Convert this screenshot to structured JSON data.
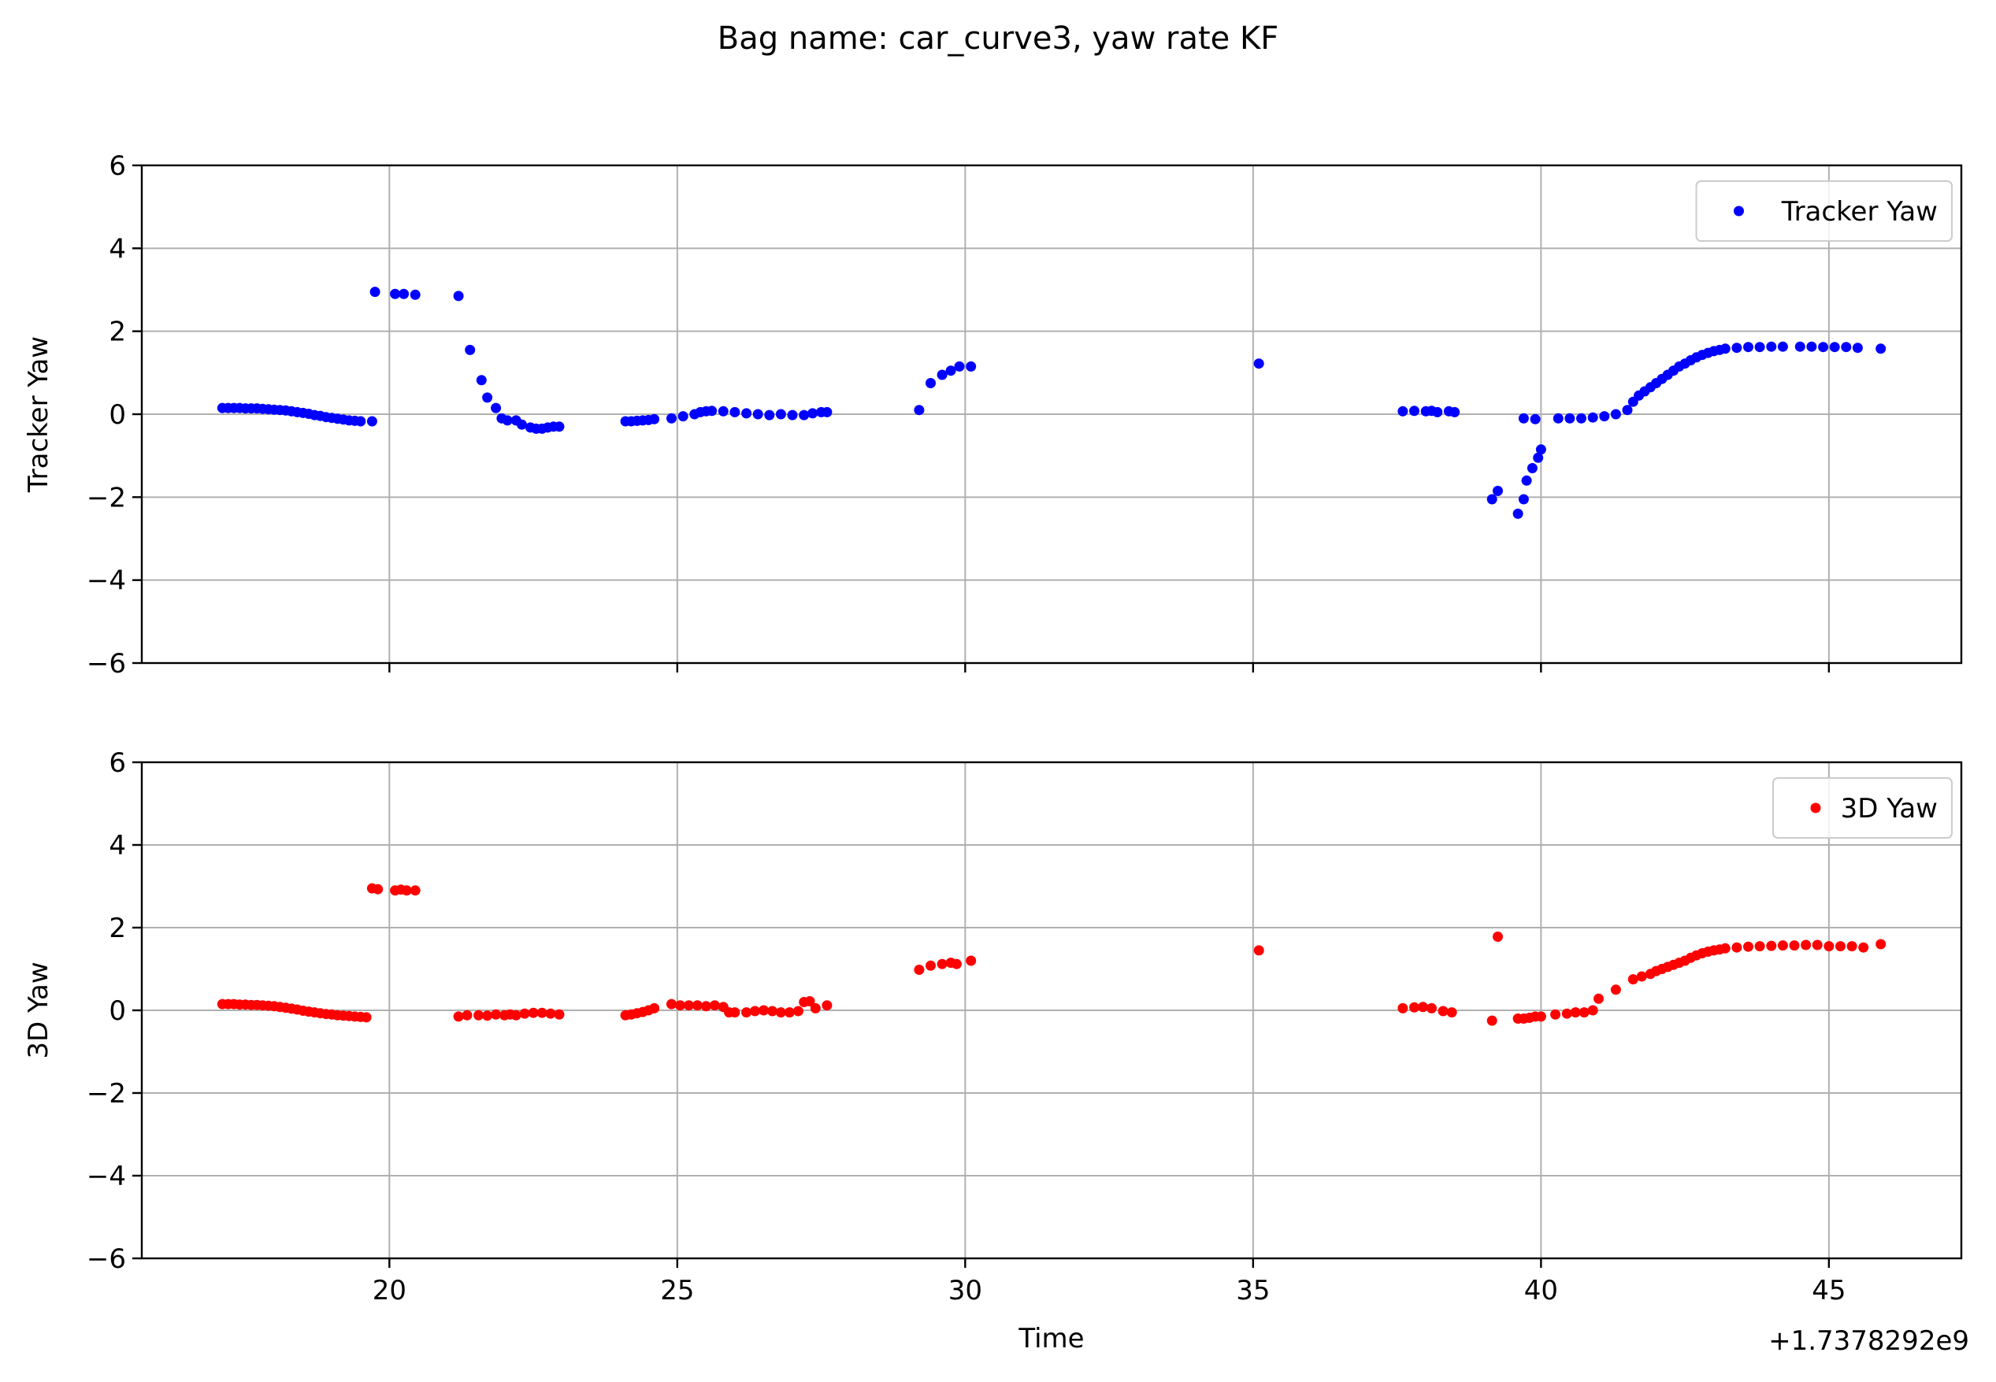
{
  "figure": {
    "suptitle": "Bag name: car_curve3, yaw rate KF",
    "x_offset_label": "+1.7378292e9"
  },
  "chart_data": [
    {
      "type": "scatter",
      "title": "",
      "xlabel": "",
      "ylabel": "Tracker Yaw",
      "xlim": [
        15.7,
        47.3
      ],
      "ylim": [
        -6,
        6
      ],
      "xticks": [
        20,
        25,
        30,
        35,
        40,
        45
      ],
      "yticks": [
        -6,
        -4,
        -2,
        0,
        2,
        4,
        6
      ],
      "ytick_labels": [
        "−6",
        "−4",
        "−2",
        "0",
        "2",
        "4",
        "6"
      ],
      "show_xtick_labels": false,
      "grid": true,
      "legend_position": "top-right",
      "series": [
        {
          "name": "Tracker Yaw",
          "color": "#0000ff",
          "points": [
            [
              17.1,
              0.15
            ],
            [
              17.2,
              0.15
            ],
            [
              17.3,
              0.15
            ],
            [
              17.4,
              0.15
            ],
            [
              17.5,
              0.14
            ],
            [
              17.6,
              0.14
            ],
            [
              17.7,
              0.14
            ],
            [
              17.8,
              0.13
            ],
            [
              17.9,
              0.12
            ],
            [
              18.0,
              0.11
            ],
            [
              18.1,
              0.1
            ],
            [
              18.2,
              0.09
            ],
            [
              18.3,
              0.07
            ],
            [
              18.4,
              0.05
            ],
            [
              18.5,
              0.03
            ],
            [
              18.6,
              0.01
            ],
            [
              18.7,
              -0.02
            ],
            [
              18.8,
              -0.04
            ],
            [
              18.9,
              -0.07
            ],
            [
              19.0,
              -0.09
            ],
            [
              19.1,
              -0.11
            ],
            [
              19.2,
              -0.13
            ],
            [
              19.3,
              -0.15
            ],
            [
              19.4,
              -0.16
            ],
            [
              19.5,
              -0.17
            ],
            [
              19.7,
              -0.17
            ],
            [
              19.75,
              2.95
            ],
            [
              20.1,
              2.9
            ],
            [
              20.25,
              2.9
            ],
            [
              20.45,
              2.88
            ],
            [
              21.2,
              2.85
            ],
            [
              21.4,
              1.55
            ],
            [
              21.6,
              0.82
            ],
            [
              21.7,
              0.4
            ],
            [
              21.85,
              0.15
            ],
            [
              21.95,
              -0.1
            ],
            [
              22.05,
              -0.15
            ],
            [
              22.2,
              -0.15
            ],
            [
              22.3,
              -0.25
            ],
            [
              22.45,
              -0.32
            ],
            [
              22.55,
              -0.35
            ],
            [
              22.65,
              -0.35
            ],
            [
              22.75,
              -0.32
            ],
            [
              22.85,
              -0.3
            ],
            [
              22.95,
              -0.3
            ],
            [
              24.1,
              -0.17
            ],
            [
              24.2,
              -0.17
            ],
            [
              24.3,
              -0.16
            ],
            [
              24.4,
              -0.15
            ],
            [
              24.5,
              -0.14
            ],
            [
              24.6,
              -0.12
            ],
            [
              24.9,
              -0.1
            ],
            [
              25.1,
              -0.05
            ],
            [
              25.3,
              0.0
            ],
            [
              25.4,
              0.05
            ],
            [
              25.5,
              0.07
            ],
            [
              25.6,
              0.08
            ],
            [
              25.8,
              0.07
            ],
            [
              26.0,
              0.05
            ],
            [
              26.2,
              0.02
            ],
            [
              26.4,
              0.0
            ],
            [
              26.6,
              -0.02
            ],
            [
              26.8,
              0.0
            ],
            [
              27.0,
              -0.02
            ],
            [
              27.2,
              -0.02
            ],
            [
              27.35,
              0.02
            ],
            [
              27.5,
              0.05
            ],
            [
              27.6,
              0.05
            ],
            [
              29.2,
              0.1
            ],
            [
              29.4,
              0.75
            ],
            [
              29.6,
              0.95
            ],
            [
              29.75,
              1.05
            ],
            [
              29.9,
              1.15
            ],
            [
              30.1,
              1.15
            ],
            [
              35.1,
              1.22
            ],
            [
              37.6,
              0.07
            ],
            [
              37.8,
              0.08
            ],
            [
              38.0,
              0.07
            ],
            [
              38.1,
              0.08
            ],
            [
              38.2,
              0.05
            ],
            [
              38.4,
              0.07
            ],
            [
              38.5,
              0.05
            ],
            [
              39.15,
              -2.05
            ],
            [
              39.25,
              -1.85
            ],
            [
              39.6,
              -2.4
            ],
            [
              39.7,
              -2.05
            ],
            [
              39.75,
              -1.6
            ],
            [
              39.85,
              -1.3
            ],
            [
              39.95,
              -1.05
            ],
            [
              40.0,
              -0.85
            ],
            [
              39.7,
              -0.1
            ],
            [
              39.9,
              -0.12
            ],
            [
              40.3,
              -0.1
            ],
            [
              40.5,
              -0.1
            ],
            [
              40.7,
              -0.1
            ],
            [
              40.9,
              -0.08
            ],
            [
              41.1,
              -0.05
            ],
            [
              41.3,
              0.0
            ],
            [
              41.5,
              0.1
            ],
            [
              41.6,
              0.3
            ],
            [
              41.7,
              0.45
            ],
            [
              41.8,
              0.55
            ],
            [
              41.9,
              0.65
            ],
            [
              42.0,
              0.75
            ],
            [
              42.1,
              0.85
            ],
            [
              42.2,
              0.95
            ],
            [
              42.3,
              1.05
            ],
            [
              42.4,
              1.15
            ],
            [
              42.5,
              1.22
            ],
            [
              42.6,
              1.3
            ],
            [
              42.7,
              1.37
            ],
            [
              42.8,
              1.43
            ],
            [
              42.9,
              1.48
            ],
            [
              43.0,
              1.52
            ],
            [
              43.1,
              1.55
            ],
            [
              43.2,
              1.58
            ],
            [
              43.4,
              1.6
            ],
            [
              43.6,
              1.62
            ],
            [
              43.8,
              1.62
            ],
            [
              44.0,
              1.63
            ],
            [
              44.2,
              1.63
            ],
            [
              44.5,
              1.63
            ],
            [
              44.7,
              1.63
            ],
            [
              44.9,
              1.62
            ],
            [
              45.1,
              1.62
            ],
            [
              45.3,
              1.62
            ],
            [
              45.5,
              1.6
            ],
            [
              45.9,
              1.58
            ]
          ]
        }
      ]
    },
    {
      "type": "scatter",
      "title": "",
      "xlabel": "Time",
      "ylabel": "3D Yaw",
      "xlim": [
        15.7,
        47.3
      ],
      "ylim": [
        -6,
        6
      ],
      "xticks": [
        20,
        25,
        30,
        35,
        40,
        45
      ],
      "xtick_labels": [
        "20",
        "25",
        "30",
        "35",
        "40",
        "45"
      ],
      "yticks": [
        -6,
        -4,
        -2,
        0,
        2,
        4,
        6
      ],
      "ytick_labels": [
        "−6",
        "−4",
        "−2",
        "0",
        "2",
        "4",
        "6"
      ],
      "show_xtick_labels": true,
      "grid": true,
      "legend_position": "top-right",
      "series": [
        {
          "name": "3D Yaw",
          "color": "#ff0000",
          "points": [
            [
              17.1,
              0.15
            ],
            [
              17.2,
              0.15
            ],
            [
              17.3,
              0.15
            ],
            [
              17.4,
              0.14
            ],
            [
              17.5,
              0.14
            ],
            [
              17.6,
              0.13
            ],
            [
              17.7,
              0.13
            ],
            [
              17.8,
              0.12
            ],
            [
              17.9,
              0.11
            ],
            [
              18.0,
              0.1
            ],
            [
              18.1,
              0.08
            ],
            [
              18.2,
              0.06
            ],
            [
              18.3,
              0.04
            ],
            [
              18.4,
              0.02
            ],
            [
              18.5,
              -0.01
            ],
            [
              18.6,
              -0.03
            ],
            [
              18.7,
              -0.05
            ],
            [
              18.8,
              -0.07
            ],
            [
              18.9,
              -0.09
            ],
            [
              19.0,
              -0.1
            ],
            [
              19.1,
              -0.12
            ],
            [
              19.2,
              -0.13
            ],
            [
              19.3,
              -0.14
            ],
            [
              19.4,
              -0.15
            ],
            [
              19.5,
              -0.16
            ],
            [
              19.6,
              -0.17
            ],
            [
              19.7,
              2.95
            ],
            [
              19.8,
              2.93
            ],
            [
              20.1,
              2.9
            ],
            [
              20.2,
              2.92
            ],
            [
              20.3,
              2.9
            ],
            [
              20.45,
              2.9
            ],
            [
              21.2,
              -0.15
            ],
            [
              21.35,
              -0.12
            ],
            [
              21.55,
              -0.12
            ],
            [
              21.7,
              -0.13
            ],
            [
              21.85,
              -0.1
            ],
            [
              22.0,
              -0.12
            ],
            [
              22.1,
              -0.1
            ],
            [
              22.2,
              -0.12
            ],
            [
              22.35,
              -0.08
            ],
            [
              22.5,
              -0.06
            ],
            [
              22.65,
              -0.06
            ],
            [
              22.8,
              -0.08
            ],
            [
              22.95,
              -0.1
            ],
            [
              24.1,
              -0.12
            ],
            [
              24.2,
              -0.1
            ],
            [
              24.3,
              -0.07
            ],
            [
              24.4,
              -0.04
            ],
            [
              24.5,
              0.0
            ],
            [
              24.6,
              0.05
            ],
            [
              24.9,
              0.15
            ],
            [
              25.05,
              0.12
            ],
            [
              25.2,
              0.12
            ],
            [
              25.35,
              0.12
            ],
            [
              25.5,
              0.1
            ],
            [
              25.65,
              0.12
            ],
            [
              25.8,
              0.08
            ],
            [
              25.9,
              -0.05
            ],
            [
              26.0,
              -0.05
            ],
            [
              26.2,
              -0.05
            ],
            [
              26.35,
              -0.02
            ],
            [
              26.5,
              0.0
            ],
            [
              26.65,
              -0.02
            ],
            [
              26.8,
              -0.05
            ],
            [
              26.95,
              -0.05
            ],
            [
              27.1,
              -0.02
            ],
            [
              27.2,
              0.2
            ],
            [
              27.3,
              0.22
            ],
            [
              27.4,
              0.05
            ],
            [
              27.6,
              0.12
            ],
            [
              29.2,
              0.98
            ],
            [
              29.4,
              1.08
            ],
            [
              29.6,
              1.12
            ],
            [
              29.75,
              1.15
            ],
            [
              29.85,
              1.12
            ],
            [
              30.1,
              1.2
            ],
            [
              35.1,
              1.45
            ],
            [
              37.6,
              0.05
            ],
            [
              37.8,
              0.07
            ],
            [
              37.95,
              0.08
            ],
            [
              38.1,
              0.05
            ],
            [
              38.3,
              -0.02
            ],
            [
              38.45,
              -0.05
            ],
            [
              39.15,
              -0.25
            ],
            [
              39.25,
              1.78
            ],
            [
              39.6,
              -0.2
            ],
            [
              39.7,
              -0.2
            ],
            [
              39.8,
              -0.18
            ],
            [
              39.9,
              -0.15
            ],
            [
              40.0,
              -0.15
            ],
            [
              40.25,
              -0.1
            ],
            [
              40.45,
              -0.08
            ],
            [
              40.6,
              -0.05
            ],
            [
              40.75,
              -0.05
            ],
            [
              40.9,
              0.0
            ],
            [
              41.0,
              0.28
            ],
            [
              41.3,
              0.5
            ],
            [
              41.6,
              0.75
            ],
            [
              41.75,
              0.82
            ],
            [
              41.9,
              0.88
            ],
            [
              42.0,
              0.95
            ],
            [
              42.1,
              1.0
            ],
            [
              42.2,
              1.05
            ],
            [
              42.3,
              1.1
            ],
            [
              42.4,
              1.15
            ],
            [
              42.5,
              1.2
            ],
            [
              42.6,
              1.27
            ],
            [
              42.7,
              1.33
            ],
            [
              42.8,
              1.38
            ],
            [
              42.9,
              1.42
            ],
            [
              43.0,
              1.45
            ],
            [
              43.1,
              1.47
            ],
            [
              43.2,
              1.5
            ],
            [
              43.4,
              1.52
            ],
            [
              43.6,
              1.54
            ],
            [
              43.8,
              1.55
            ],
            [
              44.0,
              1.56
            ],
            [
              44.2,
              1.57
            ],
            [
              44.4,
              1.57
            ],
            [
              44.6,
              1.58
            ],
            [
              44.8,
              1.58
            ],
            [
              45.0,
              1.55
            ],
            [
              45.2,
              1.55
            ],
            [
              45.4,
              1.55
            ],
            [
              45.6,
              1.52
            ],
            [
              45.9,
              1.6
            ]
          ]
        }
      ]
    }
  ]
}
